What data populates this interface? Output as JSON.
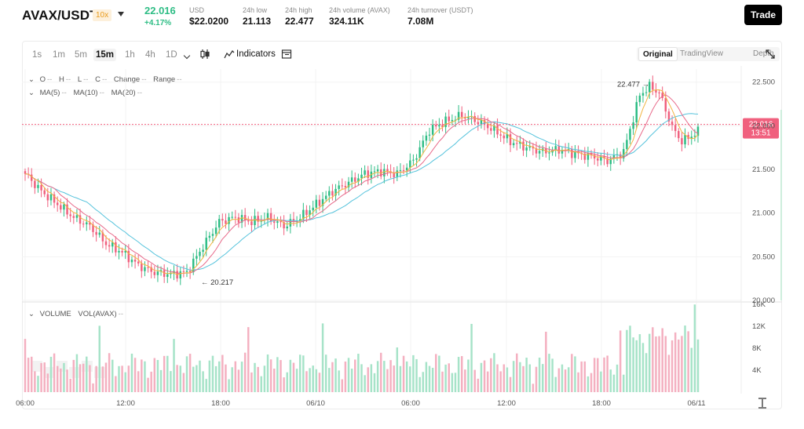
{
  "header": {
    "pair": "AVAX/USDT",
    "leverage": "10x",
    "last_price": "22.016",
    "change_pct": "+4.17%",
    "stats": [
      {
        "label": "USD",
        "value": "$22.0200"
      },
      {
        "label": "24h low",
        "value": "21.113"
      },
      {
        "label": "24h high",
        "value": "22.477"
      },
      {
        "label": "24h volume (AVAX)",
        "value": "324.11K"
      },
      {
        "label": "24h turnover (USDT)",
        "value": "7.08M"
      }
    ],
    "trade_label": "Trade"
  },
  "toolbar": {
    "timeframes": [
      "1s",
      "1m",
      "5m",
      "15m",
      "1h",
      "4h",
      "1D"
    ],
    "active_timeframe": "15m",
    "indicators_label": "Indicators",
    "views": [
      "Original",
      "TradingView",
      "Depth"
    ],
    "active_view": "Original",
    "icons": [
      "chevron-down-icon",
      "candlestick-icon",
      "indicators-icon",
      "template-icon",
      "fullscreen-icon"
    ]
  },
  "legend": {
    "ohlc": [
      "O",
      "H",
      "L",
      "C",
      "Change",
      "Range"
    ],
    "placeholder": "--",
    "ma": [
      "MA(5)",
      "MA(10)",
      "MA(20)"
    ],
    "volume": [
      "VOLUME",
      "VOL(AVAX)"
    ]
  },
  "colors": {
    "up": "#2ebd85",
    "down": "#f0607e",
    "ma5": "#f2b441",
    "ma10": "#e86b8b",
    "ma20": "#56c3dc",
    "vol_up": "#a6e3c8",
    "vol_down": "#f4b0c0"
  },
  "chart_data": {
    "type": "candlestick",
    "price_axis": [
      "22.500",
      "22.000",
      "21.500",
      "21.000",
      "20.500",
      "20.000"
    ],
    "ylim": [
      20.0,
      22.65
    ],
    "time_axis": [
      "06:00",
      "12:00",
      "18:00",
      "06/10",
      "06:00",
      "12:00",
      "18:00",
      "06/11"
    ],
    "volume_axis": [
      "16K",
      "12K",
      "8K",
      "4K"
    ],
    "volume_ylim": [
      0,
      16000
    ],
    "current_price": "22.016",
    "countdown": "13:51",
    "high_marker": "22.477",
    "low_marker": "20.217",
    "close_anchors": [
      [
        0,
        21.45
      ],
      [
        5,
        21.25
      ],
      [
        10,
        21.1
      ],
      [
        15,
        20.95
      ],
      [
        20,
        20.85
      ],
      [
        25,
        20.65
      ],
      [
        30,
        20.55
      ],
      [
        35,
        20.4
      ],
      [
        40,
        20.32
      ],
      [
        45,
        20.3
      ],
      [
        50,
        20.32
      ],
      [
        55,
        20.62
      ],
      [
        60,
        20.9
      ],
      [
        65,
        20.95
      ],
      [
        70,
        20.9
      ],
      [
        75,
        20.95
      ],
      [
        80,
        20.85
      ],
      [
        85,
        20.95
      ],
      [
        90,
        21.1
      ],
      [
        95,
        21.25
      ],
      [
        100,
        21.35
      ],
      [
        105,
        21.45
      ],
      [
        110,
        21.48
      ],
      [
        115,
        21.45
      ],
      [
        120,
        21.6
      ],
      [
        125,
        21.95
      ],
      [
        130,
        22.05
      ],
      [
        135,
        22.12
      ],
      [
        140,
        22.05
      ],
      [
        145,
        21.95
      ],
      [
        150,
        21.82
      ],
      [
        155,
        21.75
      ],
      [
        160,
        21.7
      ],
      [
        165,
        21.73
      ],
      [
        170,
        21.68
      ],
      [
        175,
        21.65
      ],
      [
        180,
        21.6
      ],
      [
        185,
        21.7
      ],
      [
        190,
        22.35
      ],
      [
        193,
        22.45
      ],
      [
        196,
        22.38
      ],
      [
        200,
        21.98
      ],
      [
        203,
        21.82
      ],
      [
        208,
        21.93
      ]
    ]
  }
}
